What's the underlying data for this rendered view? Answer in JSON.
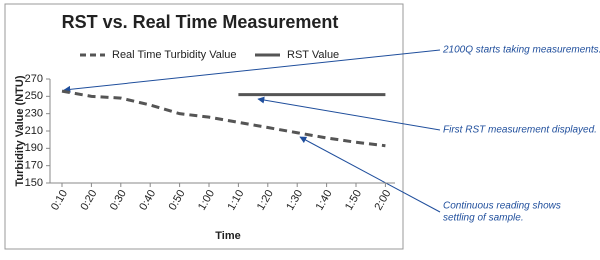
{
  "chart_data": {
    "type": "line",
    "title": "RST vs. Real Time Measurement",
    "x_label": "Time",
    "y_label": "Turbidity Value (NTU)",
    "categories": [
      "0:10",
      "0:20",
      "0:30",
      "0:40",
      "0:50",
      "1:00",
      "1:10",
      "1:20",
      "1:30",
      "1:40",
      "1:50",
      "2:00"
    ],
    "series": [
      {
        "name": "Real Time Turbidity Value",
        "color": "#555555",
        "dashed": true,
        "values": [
          256,
          250,
          248,
          240,
          230,
          226,
          220,
          214,
          208,
          202,
          197,
          193
        ]
      },
      {
        "name": "RST Value",
        "color": "#555555",
        "dashed": false,
        "values": [
          null,
          null,
          null,
          null,
          null,
          null,
          252,
          252,
          252,
          252,
          252,
          252
        ]
      }
    ],
    "ylim": [
      150,
      270
    ],
    "yticks": [
      150,
      170,
      190,
      210,
      230,
      250,
      270
    ],
    "grid": false
  },
  "annotations": [
    {
      "lines": [
        "2100Q starts taking measurements."
      ]
    },
    {
      "lines": [
        "First RST measurement displayed."
      ]
    },
    {
      "lines": [
        "Continuous reading shows",
        "settling of sample."
      ]
    }
  ]
}
